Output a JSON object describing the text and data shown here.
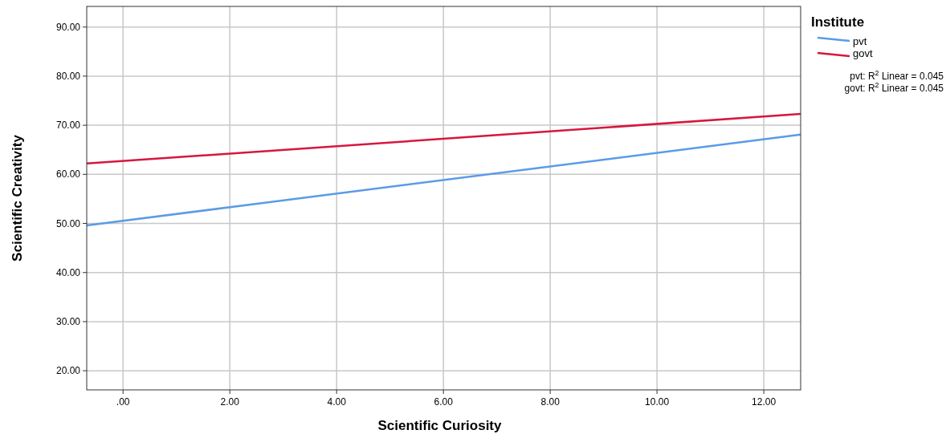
{
  "chart_data": {
    "type": "line",
    "xlabel": "Scientific Curiosity",
    "ylabel": "Scientific Creativity",
    "legend_title": "Institute",
    "xlim": [
      -0.68,
      12.69
    ],
    "x": [
      -0.68,
      12.69
    ],
    "ylim": [
      16.1,
      94.2
    ],
    "xticks": [
      {
        "value": 0,
        "label": ".00"
      },
      {
        "value": 2,
        "label": "2.00"
      },
      {
        "value": 4,
        "label": "4.00"
      },
      {
        "value": 6,
        "label": "6.00"
      },
      {
        "value": 8,
        "label": "8.00"
      },
      {
        "value": 10,
        "label": "10.00"
      },
      {
        "value": 12,
        "label": "12.00"
      }
    ],
    "yticks": [
      {
        "value": 20,
        "label": "20.00"
      },
      {
        "value": 30,
        "label": "30.00"
      },
      {
        "value": 40,
        "label": "40.00"
      },
      {
        "value": 50,
        "label": "50.00"
      },
      {
        "value": 60,
        "label": "60.00"
      },
      {
        "value": 70,
        "label": "70.00"
      },
      {
        "value": 80,
        "label": "80.00"
      },
      {
        "value": 90,
        "label": "90.00"
      }
    ],
    "series": [
      {
        "name": "pvt",
        "color": "#5b9be6",
        "values": [
          49.6,
          68.1
        ]
      },
      {
        "name": "govt",
        "color": "#d6173f",
        "values": [
          62.2,
          72.3
        ]
      }
    ],
    "annotations": [
      "pvt: R$^{2}$ Linear = 0.045",
      "govt: R$^{2}$ Linear = 0.045"
    ],
    "grid": true,
    "legend": "top right",
    "marker": "none",
    "line_style": "solid"
  }
}
